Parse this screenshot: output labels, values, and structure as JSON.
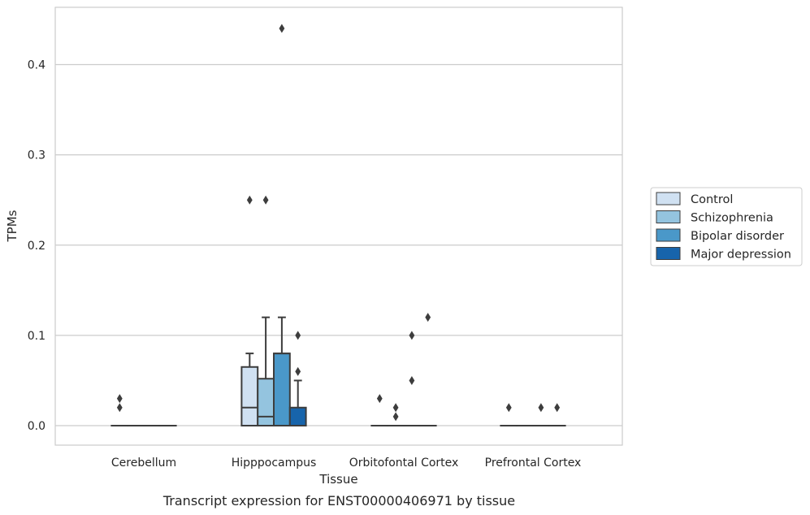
{
  "chart_data": {
    "type": "box",
    "title": "",
    "caption": "Transcript expression for ENST00000406971 by tissue",
    "xlabel": "Tissue",
    "ylabel": "TPMs",
    "ylim": [
      -0.022,
      0.465
    ],
    "yticks": [
      0.0,
      0.1,
      0.2,
      0.3,
      0.4
    ],
    "ytick_labels": [
      "0.0",
      "0.1",
      "0.2",
      "0.3",
      "0.4"
    ],
    "grid": "horizontal",
    "legend_position": "right",
    "categories": [
      "Cerebellum",
      "Hipppocampus",
      "Orbitofontal Cortex",
      "Prefrontal Cortex"
    ],
    "series": [
      {
        "name": "Control",
        "color": "#d0e1f2",
        "boxes": [
          {
            "q1": 0,
            "median": 0,
            "q3": 0,
            "whislo": 0,
            "whishi": 0,
            "fliers": [
              0.02,
              0.03
            ]
          },
          {
            "q1": 0,
            "median": 0.02,
            "q3": 0.065,
            "whislo": 0,
            "whishi": 0.08,
            "fliers": [
              0.25
            ]
          },
          {
            "q1": 0,
            "median": 0,
            "q3": 0,
            "whislo": 0,
            "whishi": 0,
            "fliers": [
              0.03
            ]
          },
          {
            "q1": 0,
            "median": 0,
            "q3": 0,
            "whislo": 0,
            "whishi": 0,
            "fliers": [
              0.02
            ]
          }
        ]
      },
      {
        "name": "Schizophrenia",
        "color": "#94c4df",
        "boxes": [
          {
            "q1": 0,
            "median": 0,
            "q3": 0,
            "whislo": 0,
            "whishi": 0,
            "fliers": []
          },
          {
            "q1": 0,
            "median": 0.01,
            "q3": 0.052,
            "whislo": 0,
            "whishi": 0.12,
            "fliers": [
              0.25
            ]
          },
          {
            "q1": 0,
            "median": 0,
            "q3": 0,
            "whislo": 0,
            "whishi": 0,
            "fliers": [
              0.01,
              0.02
            ]
          },
          {
            "q1": 0,
            "median": 0,
            "q3": 0,
            "whislo": 0,
            "whishi": 0,
            "fliers": []
          }
        ]
      },
      {
        "name": "Bipolar disorder",
        "color": "#4a98c9",
        "boxes": [
          {
            "q1": 0,
            "median": 0,
            "q3": 0,
            "whislo": 0,
            "whishi": 0,
            "fliers": []
          },
          {
            "q1": 0,
            "median": 0.08,
            "q3": 0.08,
            "whislo": 0,
            "whishi": 0.12,
            "fliers": [
              0.44
            ]
          },
          {
            "q1": 0,
            "median": 0,
            "q3": 0,
            "whislo": 0,
            "whishi": 0,
            "fliers": [
              0.05,
              0.1
            ]
          },
          {
            "q1": 0,
            "median": 0,
            "q3": 0,
            "whislo": 0,
            "whishi": 0,
            "fliers": [
              0.02
            ]
          }
        ]
      },
      {
        "name": "Major depression",
        "color": "#1764ab",
        "boxes": [
          {
            "q1": 0,
            "median": 0,
            "q3": 0,
            "whislo": 0,
            "whishi": 0,
            "fliers": []
          },
          {
            "q1": 0,
            "median": 0,
            "q3": 0.02,
            "whislo": 0,
            "whishi": 0.05,
            "fliers": [
              0.06,
              0.1
            ]
          },
          {
            "q1": 0,
            "median": 0,
            "q3": 0,
            "whislo": 0,
            "whishi": 0,
            "fliers": [
              0.12
            ]
          },
          {
            "q1": 0,
            "median": 0,
            "q3": 0,
            "whislo": 0,
            "whishi": 0,
            "fliers": [
              0.02
            ]
          }
        ]
      }
    ]
  }
}
